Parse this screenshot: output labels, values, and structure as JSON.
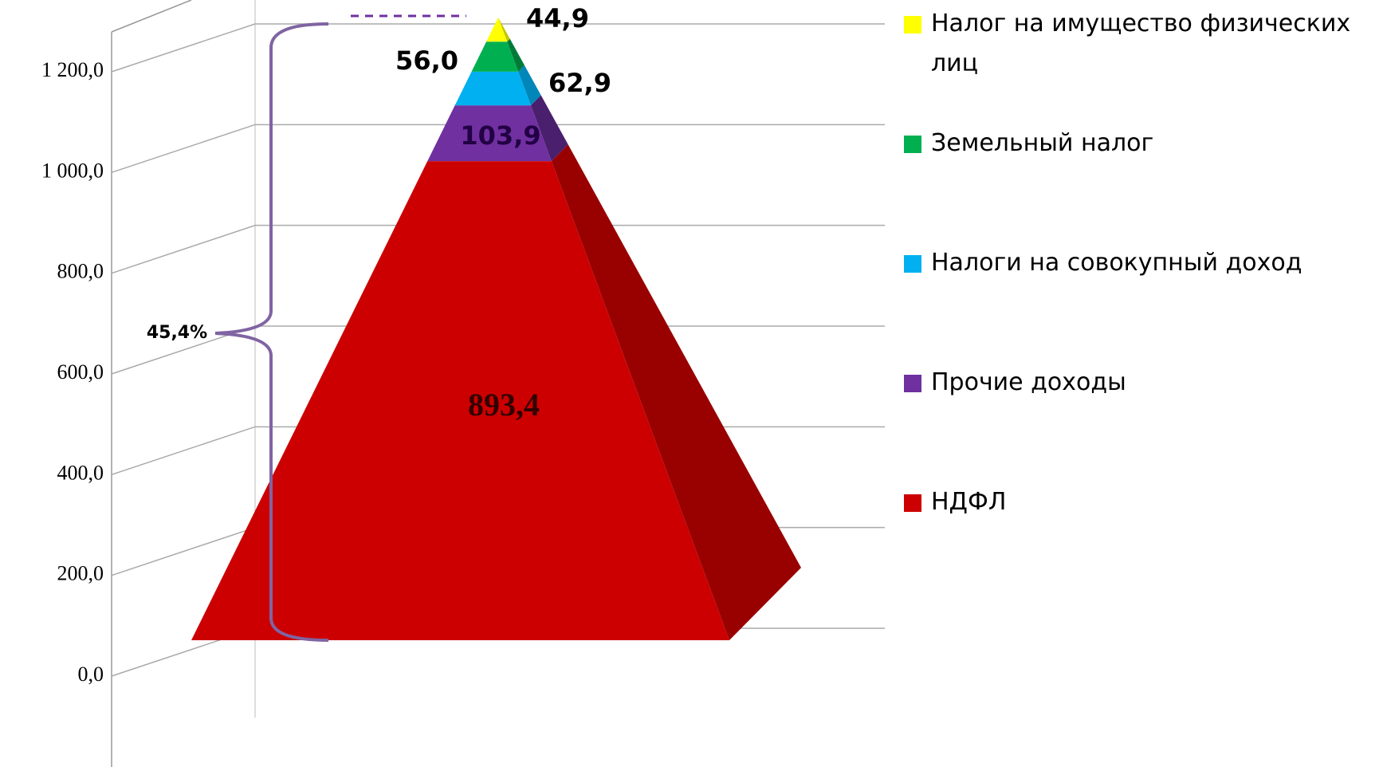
{
  "chart_data": {
    "type": "pyramid-stacked",
    "series": [
      {
        "name": "НДФЛ",
        "color": "#cc0000",
        "side_color": "#990000",
        "values": [
          893.4
        ],
        "value_labels": [
          "893,4"
        ]
      },
      {
        "name": "Прочие доходы",
        "color": "#7030a0",
        "side_color": "#4a1f6d",
        "values": [
          103.9
        ],
        "value_labels": [
          "103,9"
        ]
      },
      {
        "name": "Налоги на совокупный доход",
        "color": "#00b0f0",
        "side_color": "#0086b8",
        "values": [
          62.9
        ],
        "value_labels": [
          "62,9"
        ]
      },
      {
        "name": "Земельный налог",
        "color": "#00b050",
        "side_color": "#007a38",
        "values": [
          56.0
        ],
        "value_labels": [
          "56,0"
        ]
      },
      {
        "name": "Налог на имущество физических лиц",
        "color": "#ffff00",
        "side_color": "#c4c400",
        "values": [
          44.9
        ],
        "value_labels": [
          "44,9"
        ]
      }
    ],
    "ylim": [
      0,
      1200
    ],
    "yticks": [
      {
        "value": 0,
        "label": "0,0"
      },
      {
        "value": 200,
        "label": "200,0"
      },
      {
        "value": 400,
        "label": "400,0"
      },
      {
        "value": 600,
        "label": "600,0"
      },
      {
        "value": 800,
        "label": "800,0"
      },
      {
        "value": 1000,
        "label": "1 000,0"
      },
      {
        "value": 1200,
        "label": "1 200,0"
      }
    ],
    "grid": true,
    "legend": "right",
    "annotation": "45,4%"
  }
}
